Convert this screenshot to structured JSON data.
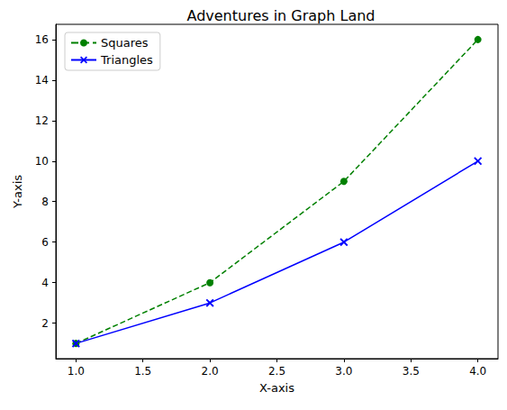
{
  "chart_data": {
    "type": "line",
    "title": "Adventures in Graph Land",
    "x_label": "X-axis",
    "y_label": "Y-axis",
    "x": [
      1,
      2,
      3,
      4
    ],
    "series": [
      {
        "name": "Squares",
        "color": "#008000",
        "marker": "circle",
        "line_style": "dashed",
        "values": [
          1,
          4,
          9,
          16
        ]
      },
      {
        "name": "Triangles",
        "color": "#0000ff",
        "marker": "x",
        "line_style": "solid",
        "values": [
          1,
          3,
          6,
          10
        ]
      }
    ],
    "xlim": [
      0.85,
      4.15
    ],
    "xticks": [
      {
        "value": 1,
        "label": "1.0"
      },
      {
        "value": 1.5,
        "label": "1.5"
      },
      {
        "value": 2,
        "label": "2.0"
      },
      {
        "value": 2.5,
        "label": "2.5"
      },
      {
        "value": 3,
        "label": "3.0"
      },
      {
        "value": 3.5,
        "label": "3.5"
      },
      {
        "value": 4,
        "label": "4.0"
      }
    ],
    "ylim": [
      0.25,
      16.75
    ],
    "yticks": [
      2,
      4,
      6,
      8,
      10,
      12,
      14,
      16
    ],
    "legend": "upper left",
    "grid": false
  }
}
